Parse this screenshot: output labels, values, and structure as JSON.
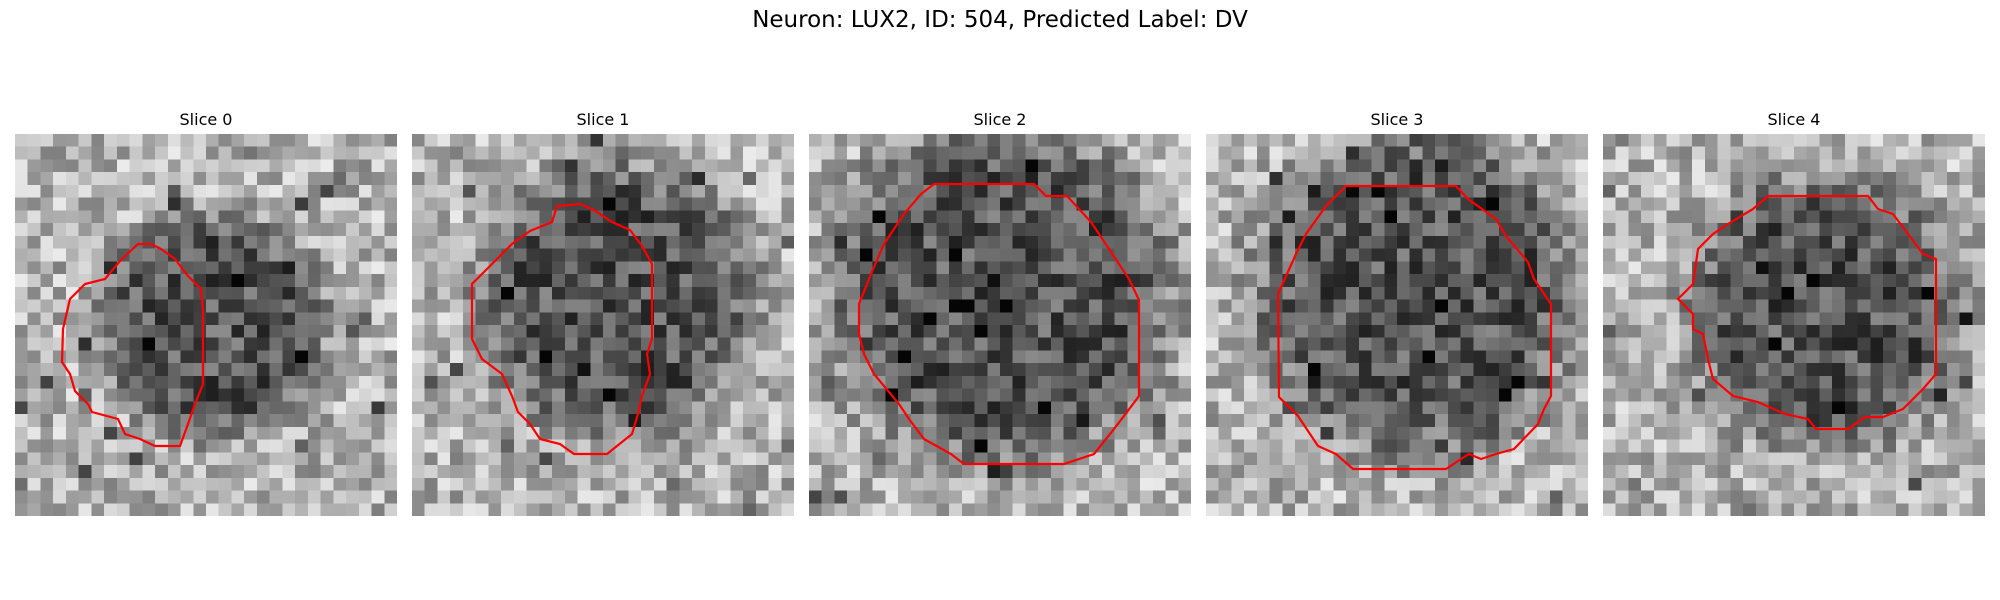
{
  "figure": {
    "title": "Neuron: LUX2, ID: 504, Predicted Label: DV"
  },
  "contour_color": "#ff0000",
  "slices": [
    {
      "title": "Slice 0"
    },
    {
      "title": "Slice 1"
    },
    {
      "title": "Slice 2"
    },
    {
      "title": "Slice 3"
    },
    {
      "title": "Slice 4"
    }
  ]
}
